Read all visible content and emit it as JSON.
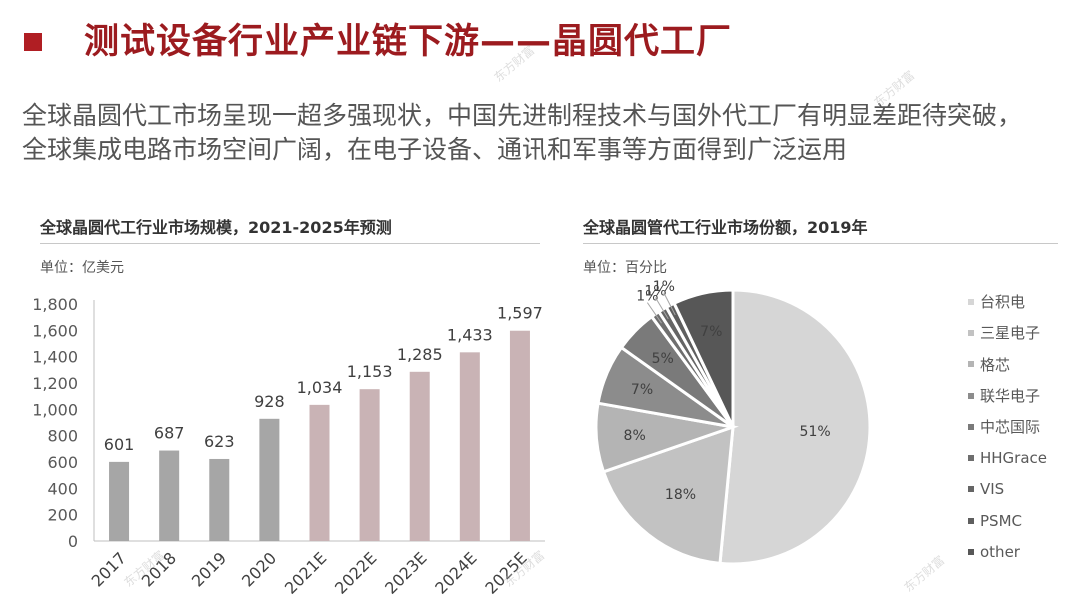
{
  "header": {
    "title": "测试设备行业产业链下游——晶圆代工厂",
    "subtitle_lines": [
      "全球晶圆代工市场呈现一超多强现状，中国先进制程技术与国外代工厂有明显差距待突破，",
      "全球集成电路市场空间广阔，在电子设备、通讯和军事等方面得到广泛运用"
    ]
  },
  "watermark_text": "东方财富",
  "colors": {
    "title": "#9c1b1f",
    "marker": "#b01e23",
    "bar_actual": "#a6a6a6",
    "bar_forecast": "#c9b3b5"
  },
  "chart_data": [
    {
      "type": "bar",
      "title": "全球晶圆代工行业市场规模，2021-2025年预测",
      "unit": "单位：亿美元",
      "categories": [
        "2017",
        "2018",
        "2019",
        "2020",
        "2021E",
        "2022E",
        "2023E",
        "2024E",
        "2025E"
      ],
      "values": [
        601,
        687,
        623,
        928,
        1034,
        1153,
        1285,
        1433,
        1597
      ],
      "data_labels": [
        "601",
        "687",
        "623",
        "928",
        "1,034",
        "1,153",
        "1,285",
        "1,433",
        "1,597"
      ],
      "forecast": [
        false,
        false,
        false,
        false,
        true,
        true,
        true,
        true,
        true
      ],
      "ylim": [
        0,
        1800
      ],
      "yticks": [
        "0",
        "200",
        "400",
        "600",
        "800",
        "1,000",
        "1,200",
        "1,400",
        "1,600",
        "1,800"
      ],
      "grid": false
    },
    {
      "type": "pie",
      "title": "全球晶圆管代工行业市场份额，2019年",
      "unit": "单位：百分比",
      "labels": [
        "台积电",
        "三星电子",
        "格芯",
        "联华电子",
        "中芯国际",
        "HHGrace",
        "VIS",
        "PSMC",
        "other"
      ],
      "values": [
        51,
        18,
        8,
        7,
        5,
        1,
        1,
        1,
        7
      ],
      "value_labels": [
        "51%",
        "18%",
        "8%",
        "7%",
        "5%",
        "1%",
        "1%",
        "1%",
        "7%"
      ],
      "colors": [
        "#d6d6d6",
        "#c2c2c2",
        "#b4b4b4",
        "#8c8c8c",
        "#7a7a7a",
        "#6e6e6e",
        "#656565",
        "#5e5e5e",
        "#575757"
      ],
      "legend_position": "right"
    }
  ]
}
